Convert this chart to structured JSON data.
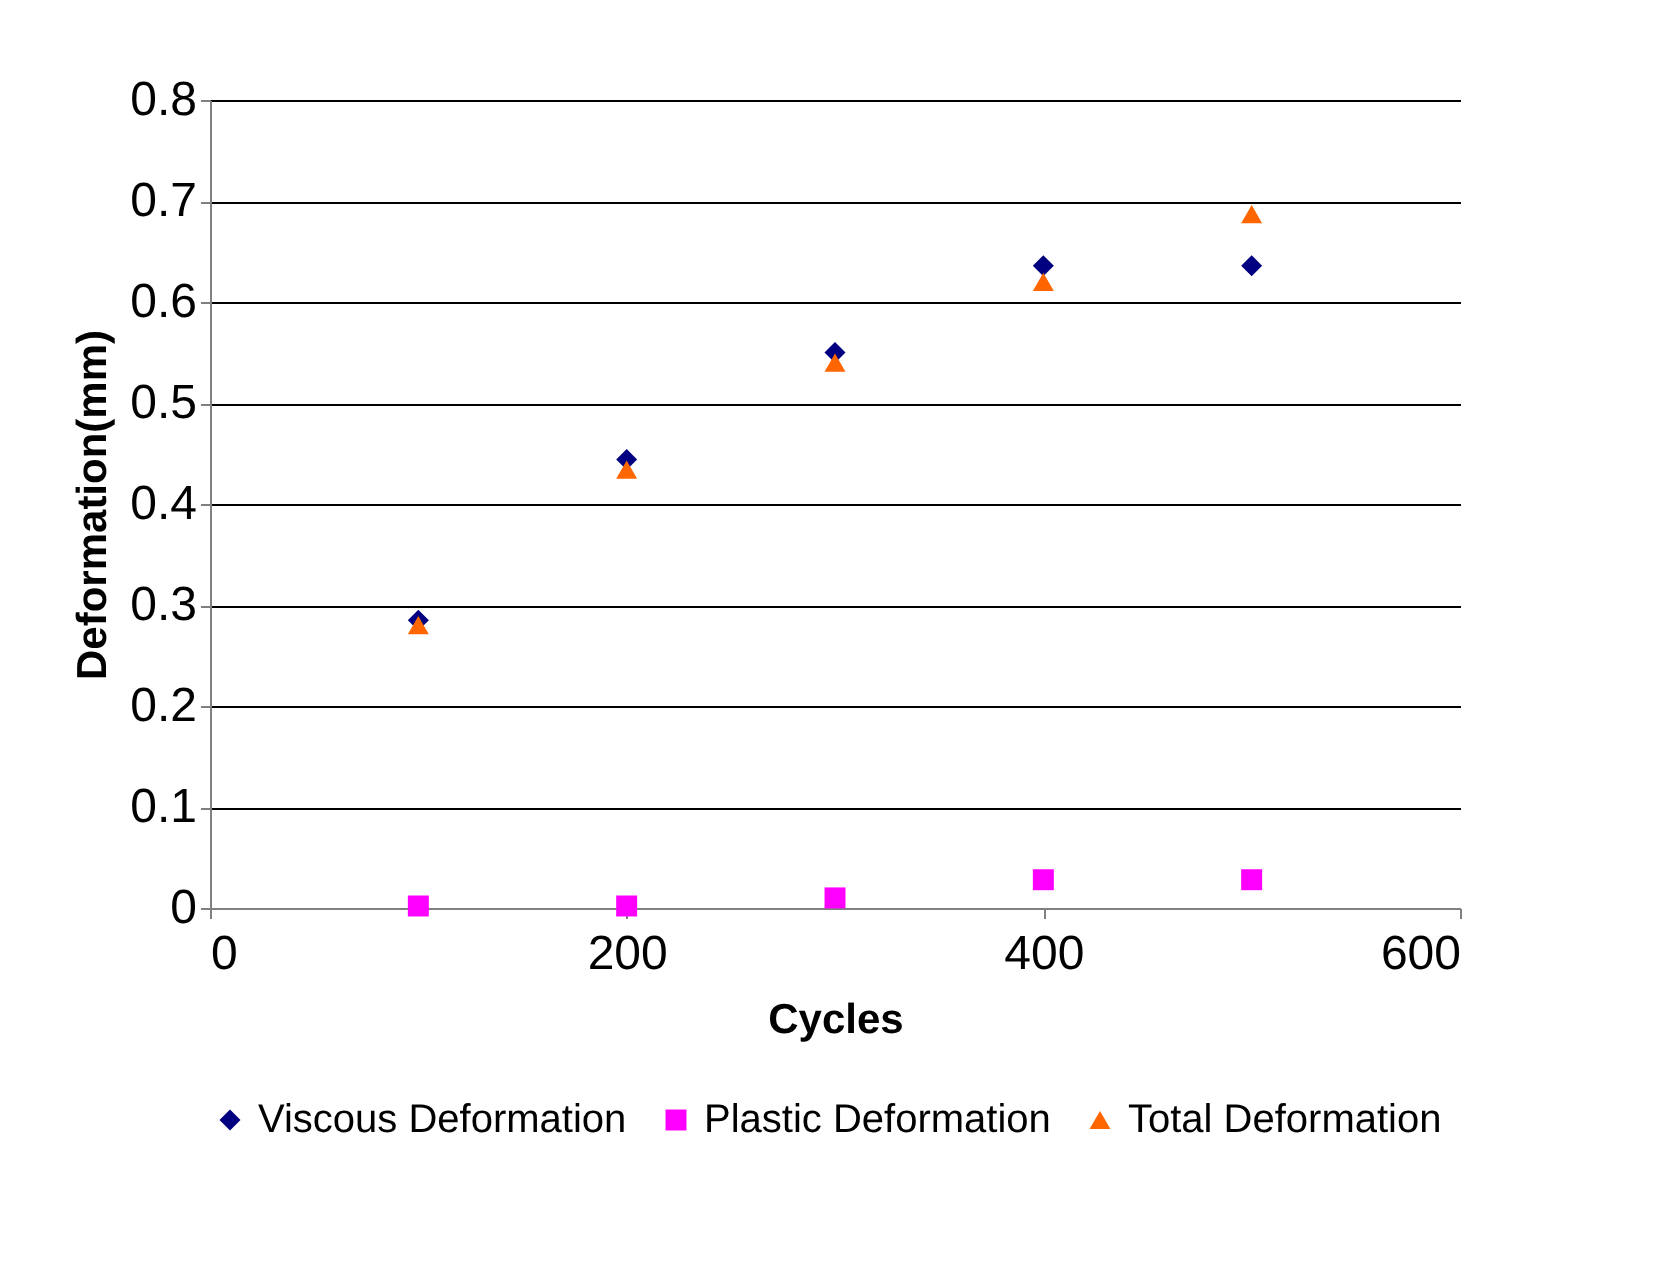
{
  "chart_data": {
    "type": "scatter",
    "xlabel": "Cycles",
    "ylabel": "Deformation(mm)",
    "x": [
      100,
      200,
      300,
      400,
      500
    ],
    "series": [
      {
        "name": "Viscous Deformation",
        "color": "#000080",
        "marker": "diamond",
        "values": [
          0.285,
          0.444,
          0.55,
          0.636,
          0.636
        ]
      },
      {
        "name": "Plastic Deformation",
        "color": "#ff00ff",
        "marker": "square",
        "values": [
          0.002,
          0.002,
          0.01,
          0.028,
          0.028
        ]
      },
      {
        "name": "Total Deformation",
        "color": "#ff6600",
        "marker": "triangle",
        "values": [
          0.28,
          0.434,
          0.54,
          0.62,
          0.687
        ]
      }
    ],
    "xlim": [
      0,
      600
    ],
    "xticks": [
      0,
      200,
      400,
      600
    ],
    "ylim": [
      0,
      0.8
    ],
    "yticks": [
      0,
      0.1,
      0.2,
      0.3,
      0.4,
      0.5,
      0.6,
      0.7,
      0.8
    ],
    "grid": "y",
    "legend": "bottom"
  }
}
